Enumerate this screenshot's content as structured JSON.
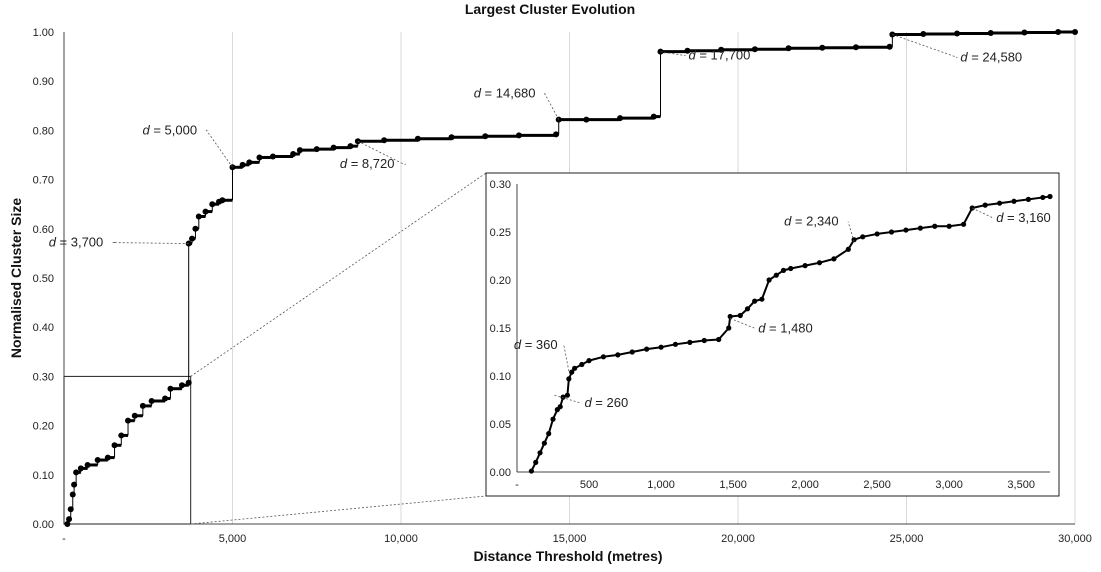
{
  "chart_data": [
    {
      "id": "main",
      "type": "scatter",
      "title": "Largest Cluster Evolution",
      "xlabel": "Distance Threshold (metres)",
      "ylabel": "Normalised Cluster Size",
      "xlim": [
        0,
        30000
      ],
      "ylim": [
        0,
        1.0
      ],
      "xticks": [
        0,
        5000,
        10000,
        15000,
        20000,
        25000,
        30000
      ],
      "xtick_labels": [
        "-",
        "5,000",
        "10,000",
        "15,000",
        "20,000",
        "25,000",
        "30,000"
      ],
      "yticks": [
        0,
        0.1,
        0.2,
        0.3,
        0.4,
        0.5,
        0.6,
        0.7,
        0.8,
        0.9,
        1.0
      ],
      "ytick_labels": [
        "0.00",
        "0.10",
        "0.20",
        "0.30",
        "0.40",
        "0.50",
        "0.60",
        "0.70",
        "0.80",
        "0.90",
        "1.00"
      ],
      "grid": "vertical",
      "series": [
        {
          "points": [
            [
              100,
              0.0
            ],
            [
              150,
              0.01
            ],
            [
              200,
              0.03
            ],
            [
              260,
              0.06
            ],
            [
              300,
              0.08
            ],
            [
              360,
              0.105
            ],
            [
              500,
              0.113
            ],
            [
              700,
              0.12
            ],
            [
              1000,
              0.13
            ],
            [
              1300,
              0.135
            ],
            [
              1500,
              0.16
            ],
            [
              1700,
              0.18
            ],
            [
              1900,
              0.21
            ],
            [
              2100,
              0.22
            ],
            [
              2340,
              0.24
            ],
            [
              2600,
              0.25
            ],
            [
              3000,
              0.255
            ],
            [
              3160,
              0.275
            ],
            [
              3500,
              0.282
            ],
            [
              3700,
              0.287
            ],
            [
              3700,
              0.57
            ],
            [
              3800,
              0.58
            ],
            [
              3900,
              0.6
            ],
            [
              4000,
              0.625
            ],
            [
              4200,
              0.635
            ],
            [
              4400,
              0.65
            ],
            [
              4600,
              0.655
            ],
            [
              4700,
              0.658
            ],
            [
              5000,
              0.725
            ],
            [
              5300,
              0.73
            ],
            [
              5500,
              0.735
            ],
            [
              5800,
              0.745
            ],
            [
              6200,
              0.747
            ],
            [
              6800,
              0.752
            ],
            [
              7000,
              0.76
            ],
            [
              7500,
              0.762
            ],
            [
              8000,
              0.765
            ],
            [
              8500,
              0.768
            ],
            [
              8720,
              0.778
            ],
            [
              9500,
              0.78
            ],
            [
              10500,
              0.783
            ],
            [
              11500,
              0.786
            ],
            [
              12500,
              0.788
            ],
            [
              13500,
              0.79
            ],
            [
              14600,
              0.792
            ],
            [
              14680,
              0.822
            ],
            [
              15500,
              0.822
            ],
            [
              16500,
              0.825
            ],
            [
              17500,
              0.828
            ],
            [
              17700,
              0.96
            ],
            [
              18500,
              0.962
            ],
            [
              19500,
              0.964
            ],
            [
              20500,
              0.965
            ],
            [
              21500,
              0.967
            ],
            [
              22500,
              0.968
            ],
            [
              23500,
              0.969
            ],
            [
              24500,
              0.97
            ],
            [
              24580,
              0.995
            ],
            [
              25500,
              0.996
            ],
            [
              26500,
              0.997
            ],
            [
              27500,
              0.998
            ],
            [
              28500,
              0.999
            ],
            [
              29500,
              1.0
            ],
            [
              30000,
              1.0
            ]
          ]
        }
      ],
      "annotations": [
        {
          "prefix": "d",
          "text": " = 3,700",
          "x": 3700,
          "y": 0.57
        },
        {
          "prefix": "d",
          "text": " = 5,000",
          "x": 5000,
          "y": 0.725
        },
        {
          "prefix": "d",
          "text": " = 8,720",
          "x": 8720,
          "y": 0.778
        },
        {
          "prefix": "d",
          "text": " = 14,680",
          "x": 14680,
          "y": 0.822
        },
        {
          "prefix": "d",
          "text": " = 17,700",
          "x": 17700,
          "y": 0.96
        },
        {
          "prefix": "d",
          "text": " = 24,580",
          "x": 24580,
          "y": 0.995
        }
      ]
    },
    {
      "id": "inset",
      "type": "scatter",
      "xlim": [
        0,
        3700
      ],
      "ylim": [
        0,
        0.3
      ],
      "xticks": [
        0,
        500,
        1000,
        1500,
        2000,
        2500,
        3000,
        3500
      ],
      "xtick_labels": [
        "-",
        "500",
        "1,000",
        "1,500",
        "2,000",
        "2,500",
        "3,000",
        "3,500"
      ],
      "yticks": [
        0,
        0.05,
        0.1,
        0.15,
        0.2,
        0.25,
        0.3
      ],
      "ytick_labels": [
        "0.00",
        "0.05",
        "0.10",
        "0.15",
        "0.20",
        "0.25",
        "0.30"
      ],
      "series": [
        {
          "points": [
            [
              100,
              0.001
            ],
            [
              130,
              0.01
            ],
            [
              160,
              0.02
            ],
            [
              190,
              0.03
            ],
            [
              220,
              0.04
            ],
            [
              250,
              0.055
            ],
            [
              280,
              0.065
            ],
            [
              300,
              0.068
            ],
            [
              320,
              0.078
            ],
            [
              350,
              0.08
            ],
            [
              360,
              0.097
            ],
            [
              380,
              0.104
            ],
            [
              400,
              0.108
            ],
            [
              450,
              0.112
            ],
            [
              500,
              0.116
            ],
            [
              600,
              0.12
            ],
            [
              700,
              0.122
            ],
            [
              800,
              0.125
            ],
            [
              900,
              0.128
            ],
            [
              1000,
              0.13
            ],
            [
              1100,
              0.133
            ],
            [
              1200,
              0.135
            ],
            [
              1300,
              0.137
            ],
            [
              1400,
              0.138
            ],
            [
              1470,
              0.15
            ],
            [
              1480,
              0.162
            ],
            [
              1550,
              0.163
            ],
            [
              1600,
              0.17
            ],
            [
              1650,
              0.178
            ],
            [
              1700,
              0.18
            ],
            [
              1750,
              0.2
            ],
            [
              1800,
              0.205
            ],
            [
              1850,
              0.21
            ],
            [
              1900,
              0.212
            ],
            [
              2000,
              0.215
            ],
            [
              2100,
              0.218
            ],
            [
              2200,
              0.222
            ],
            [
              2300,
              0.232
            ],
            [
              2340,
              0.242
            ],
            [
              2400,
              0.245
            ],
            [
              2500,
              0.248
            ],
            [
              2600,
              0.25
            ],
            [
              2700,
              0.252
            ],
            [
              2800,
              0.254
            ],
            [
              2900,
              0.256
            ],
            [
              3000,
              0.256
            ],
            [
              3100,
              0.258
            ],
            [
              3160,
              0.275
            ],
            [
              3250,
              0.278
            ],
            [
              3350,
              0.28
            ],
            [
              3450,
              0.282
            ],
            [
              3550,
              0.284
            ],
            [
              3650,
              0.286
            ],
            [
              3700,
              0.287
            ]
          ]
        }
      ],
      "annotations": [
        {
          "prefix": "d",
          "text": " = 360",
          "x": 360,
          "y": 0.105
        },
        {
          "prefix": "d",
          "text": " = 260",
          "x": 260,
          "y": 0.08
        },
        {
          "prefix": "d",
          "text": " = 1,480",
          "x": 1480,
          "y": 0.16
        },
        {
          "prefix": "d",
          "text": " = 2,340",
          "x": 2340,
          "y": 0.24
        },
        {
          "prefix": "d",
          "text": " = 3,160",
          "x": 3160,
          "y": 0.275
        }
      ]
    }
  ],
  "colors": {
    "marker": "#000000",
    "grid": "#d9d9d9",
    "axis": "#444444",
    "leader": "#555555"
  }
}
